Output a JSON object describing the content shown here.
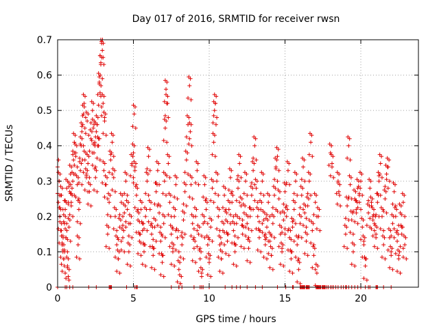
{
  "chart_data": {
    "type": "scatter",
    "title": "Day 017 of 2016, SRMTID for receiver rwsn",
    "xlabel": "GPS time / hours",
    "ylabel": "SRMTID / TECUs",
    "xlim": [
      0,
      23.8
    ],
    "ylim": [
      0,
      0.7
    ],
    "xticks": [
      0,
      5,
      10,
      15,
      20
    ],
    "xtick_labels": [
      "0",
      "5",
      "10",
      "15",
      "20"
    ],
    "yticks": [
      0,
      0.1,
      0.2,
      0.3,
      0.4,
      0.5,
      0.6,
      0.7
    ],
    "ytick_labels": [
      "0",
      "0.1",
      "0.2",
      "0.3",
      "0.4",
      "0.5",
      "0.6",
      "0.7"
    ],
    "grid": true,
    "marker": "+",
    "color": "#e00000",
    "series": [
      {
        "name": "SRMTID",
        "points": [
          [
            0.0,
            0.34
          ],
          [
            0.05,
            0.24
          ],
          [
            0.1,
            0.3
          ],
          [
            0.15,
            0.2
          ],
          [
            0.2,
            0.16
          ],
          [
            0.25,
            0.26
          ],
          [
            0.3,
            0.12
          ],
          [
            0.35,
            0.1
          ],
          [
            0.4,
            0.08
          ],
          [
            0.45,
            0.18
          ],
          [
            0.5,
            0.22
          ],
          [
            0.55,
            0.14
          ],
          [
            0.6,
            0.28
          ],
          [
            0.65,
            0.06
          ],
          [
            0.7,
            0.03
          ],
          [
            0.75,
            0.17
          ],
          [
            0.8,
            0.27
          ],
          [
            0.85,
            0.32
          ],
          [
            0.9,
            0.24
          ],
          [
            1.0,
            0.3
          ],
          [
            1.05,
            0.36
          ],
          [
            1.1,
            0.41
          ],
          [
            1.2,
            0.38
          ],
          [
            1.3,
            0.29
          ],
          [
            1.35,
            0.12
          ],
          [
            1.4,
            0.22
          ],
          [
            1.5,
            0.33
          ],
          [
            1.55,
            0.4
          ],
          [
            1.6,
            0.44
          ],
          [
            1.7,
            0.49
          ],
          [
            1.75,
            0.52
          ],
          [
            1.8,
            0.36
          ],
          [
            1.9,
            0.31
          ],
          [
            1.95,
            0.47
          ],
          [
            2.0,
            0.35
          ],
          [
            2.1,
            0.27
          ],
          [
            2.2,
            0.42
          ],
          [
            2.3,
            0.5
          ],
          [
            2.35,
            0.45
          ],
          [
            2.4,
            0.38
          ],
          [
            2.5,
            0.31
          ],
          [
            2.55,
            0.44
          ],
          [
            2.6,
            0.46
          ],
          [
            2.7,
            0.4
          ],
          [
            2.75,
            0.58
          ],
          [
            2.8,
            0.55
          ],
          [
            2.85,
            0.63
          ],
          [
            2.9,
            0.69
          ],
          [
            2.95,
            0.67
          ],
          [
            3.0,
            0.52
          ],
          [
            3.05,
            0.33
          ],
          [
            3.1,
            0.47
          ],
          [
            3.2,
            0.29
          ],
          [
            3.3,
            0.15
          ],
          [
            3.4,
            0.24
          ],
          [
            3.5,
            0.36
          ],
          [
            3.6,
            0.41
          ],
          [
            3.7,
            0.31
          ],
          [
            3.8,
            0.2
          ],
          [
            3.9,
            0.12
          ],
          [
            4.0,
            0.08
          ],
          [
            4.1,
            0.17
          ],
          [
            4.2,
            0.24
          ],
          [
            4.3,
            0.14
          ],
          [
            4.4,
            0.21
          ],
          [
            4.5,
            0.3
          ],
          [
            4.6,
            0.22
          ],
          [
            4.7,
            0.1
          ],
          [
            4.8,
            0.18
          ],
          [
            4.9,
            0.35
          ],
          [
            5.0,
            0.38
          ],
          [
            5.05,
            0.49
          ],
          [
            5.1,
            0.33
          ],
          [
            5.2,
            0.26
          ],
          [
            5.3,
            0.19
          ],
          [
            5.4,
            0.13
          ],
          [
            5.5,
            0.22
          ],
          [
            5.6,
            0.16
          ],
          [
            5.7,
            0.1
          ],
          [
            5.8,
            0.2
          ],
          [
            5.9,
            0.3
          ],
          [
            6.0,
            0.37
          ],
          [
            6.1,
            0.22
          ],
          [
            6.2,
            0.15
          ],
          [
            6.3,
            0.09
          ],
          [
            6.4,
            0.17
          ],
          [
            6.5,
            0.27
          ],
          [
            6.6,
            0.33
          ],
          [
            6.7,
            0.21
          ],
          [
            6.8,
            0.13
          ],
          [
            6.9,
            0.07
          ],
          [
            7.0,
            0.18
          ],
          [
            7.05,
            0.3
          ],
          [
            7.1,
            0.45
          ],
          [
            7.15,
            0.56
          ],
          [
            7.2,
            0.52
          ],
          [
            7.3,
            0.35
          ],
          [
            7.4,
            0.24
          ],
          [
            7.5,
            0.15
          ],
          [
            7.6,
            0.1
          ],
          [
            7.7,
            0.2
          ],
          [
            7.8,
            0.29
          ],
          [
            7.9,
            0.14
          ],
          [
            8.0,
            0.05
          ],
          [
            8.1,
            0.01
          ],
          [
            8.2,
            0.12
          ],
          [
            8.3,
            0.19
          ],
          [
            8.4,
            0.27
          ],
          [
            8.5,
            0.36
          ],
          [
            8.6,
            0.46
          ],
          [
            8.7,
            0.57
          ],
          [
            8.75,
            0.44
          ],
          [
            8.8,
            0.29
          ],
          [
            8.9,
            0.18
          ],
          [
            9.0,
            0.11
          ],
          [
            9.1,
            0.2
          ],
          [
            9.2,
            0.33
          ],
          [
            9.3,
            0.15
          ],
          [
            9.4,
            0.08
          ],
          [
            9.5,
            0.03
          ],
          [
            9.6,
            0.18
          ],
          [
            9.7,
            0.29
          ],
          [
            9.8,
            0.22
          ],
          [
            9.9,
            0.12
          ],
          [
            10.0,
            0.07
          ],
          [
            10.1,
            0.17
          ],
          [
            10.2,
            0.28
          ],
          [
            10.3,
            0.41
          ],
          [
            10.35,
            0.5
          ],
          [
            10.4,
            0.52
          ],
          [
            10.5,
            0.3
          ],
          [
            10.6,
            0.2
          ],
          [
            10.7,
            0.12
          ],
          [
            10.8,
            0.08
          ],
          [
            10.9,
            0.16
          ],
          [
            11.0,
            0.26
          ],
          [
            11.1,
            0.19
          ],
          [
            11.2,
            0.13
          ],
          [
            11.3,
            0.22
          ],
          [
            11.4,
            0.31
          ],
          [
            11.5,
            0.24
          ],
          [
            11.6,
            0.16
          ],
          [
            11.7,
            0.1
          ],
          [
            11.8,
            0.18
          ],
          [
            11.9,
            0.28
          ],
          [
            12.0,
            0.35
          ],
          [
            12.1,
            0.23
          ],
          [
            12.2,
            0.15
          ],
          [
            12.3,
            0.21
          ],
          [
            12.4,
            0.3
          ],
          [
            12.5,
            0.18
          ],
          [
            12.6,
            0.11
          ],
          [
            12.7,
            0.2
          ],
          [
            12.8,
            0.26
          ],
          [
            12.9,
            0.33
          ],
          [
            13.0,
            0.4
          ],
          [
            13.1,
            0.28
          ],
          [
            13.2,
            0.2
          ],
          [
            13.3,
            0.14
          ],
          [
            13.4,
            0.22
          ],
          [
            13.5,
            0.3
          ],
          [
            13.6,
            0.19
          ],
          [
            13.7,
            0.12
          ],
          [
            13.8,
            0.17
          ],
          [
            13.9,
            0.24
          ],
          [
            14.0,
            0.13
          ],
          [
            14.1,
            0.09
          ],
          [
            14.2,
            0.18
          ],
          [
            14.3,
            0.26
          ],
          [
            14.4,
            0.34
          ],
          [
            14.5,
            0.37
          ],
          [
            14.6,
            0.25
          ],
          [
            14.7,
            0.15
          ],
          [
            14.8,
            0.1
          ],
          [
            14.9,
            0.19
          ],
          [
            15.0,
            0.27
          ],
          [
            15.1,
            0.2
          ],
          [
            15.2,
            0.33
          ],
          [
            15.3,
            0.14
          ],
          [
            15.4,
            0.08
          ],
          [
            15.5,
            0.17
          ],
          [
            15.6,
            0.22
          ],
          [
            15.7,
            0.3
          ],
          [
            15.8,
            0.12
          ],
          [
            15.9,
            0.05
          ],
          [
            16.0,
            0.18
          ],
          [
            16.1,
            0.26
          ],
          [
            16.2,
            0.34
          ],
          [
            16.3,
            0.21
          ],
          [
            16.4,
            0.13
          ],
          [
            16.5,
            0.23
          ],
          [
            16.6,
            0.3
          ],
          [
            16.7,
            0.41
          ],
          [
            16.8,
            0.16
          ],
          [
            16.9,
            0.09
          ],
          [
            17.0,
            0.24
          ],
          [
            17.1,
            0.04
          ],
          [
            17.2,
            0.2
          ],
          [
            18.0,
            0.38
          ],
          [
            18.1,
            0.35
          ],
          [
            18.5,
            0.3
          ],
          [
            18.55,
            0.27
          ],
          [
            19.0,
            0.15
          ],
          [
            19.1,
            0.23
          ],
          [
            19.2,
            0.4
          ],
          [
            19.3,
            0.29
          ],
          [
            19.4,
            0.19
          ],
          [
            19.5,
            0.1
          ],
          [
            19.6,
            0.25
          ],
          [
            19.7,
            0.22
          ],
          [
            19.8,
            0.28
          ],
          [
            19.9,
            0.26
          ],
          [
            20.0,
            0.3
          ],
          [
            20.1,
            0.17
          ],
          [
            20.2,
            0.12
          ],
          [
            20.3,
            0.06
          ],
          [
            20.5,
            0.21
          ],
          [
            20.6,
            0.28
          ],
          [
            20.7,
            0.23
          ],
          [
            20.8,
            0.2
          ],
          [
            20.9,
            0.18
          ],
          [
            21.0,
            0.15
          ],
          [
            21.1,
            0.24
          ],
          [
            21.2,
            0.3
          ],
          [
            21.3,
            0.35
          ],
          [
            21.4,
            0.2
          ],
          [
            21.5,
            0.12
          ],
          [
            21.6,
            0.25
          ],
          [
            21.7,
            0.32
          ],
          [
            21.8,
            0.34
          ],
          [
            21.9,
            0.14
          ],
          [
            22.0,
            0.09
          ],
          [
            22.1,
            0.18
          ],
          [
            22.2,
            0.27
          ],
          [
            22.3,
            0.2
          ],
          [
            22.4,
            0.13
          ],
          [
            22.5,
            0.08
          ],
          [
            22.6,
            0.21
          ],
          [
            22.7,
            0.15
          ],
          [
            22.8,
            0.24
          ],
          [
            22.9,
            0.12
          ]
        ],
        "zeros": [
          0.0,
          0.5,
          1.0,
          2.05,
          2.55,
          3.4,
          3.45,
          3.5,
          3.55,
          4.55,
          5.1,
          5.2,
          5.25,
          7.5,
          8.0,
          9.0,
          9.5,
          10.0,
          11.05,
          11.5,
          11.8,
          12.05,
          12.5,
          13.05,
          13.5,
          14.5,
          15.05,
          15.5,
          15.55,
          16.0,
          16.05,
          16.1,
          16.15,
          16.2,
          16.25,
          16.3,
          16.4,
          16.45,
          16.5,
          16.55,
          16.6,
          17.05,
          17.1,
          17.15,
          17.2,
          17.25,
          17.3,
          17.35,
          17.45,
          17.5,
          17.55,
          17.6,
          17.65,
          17.75,
          17.85,
          18.0,
          18.1,
          18.2,
          18.35,
          18.5,
          18.7,
          18.85,
          19.0,
          19.05,
          19.2,
          19.4,
          19.6,
          19.8,
          20.0,
          20.3,
          20.5,
          20.6,
          21.0,
          21.05,
          21.1,
          21.5,
          22.0
        ]
      }
    ]
  }
}
